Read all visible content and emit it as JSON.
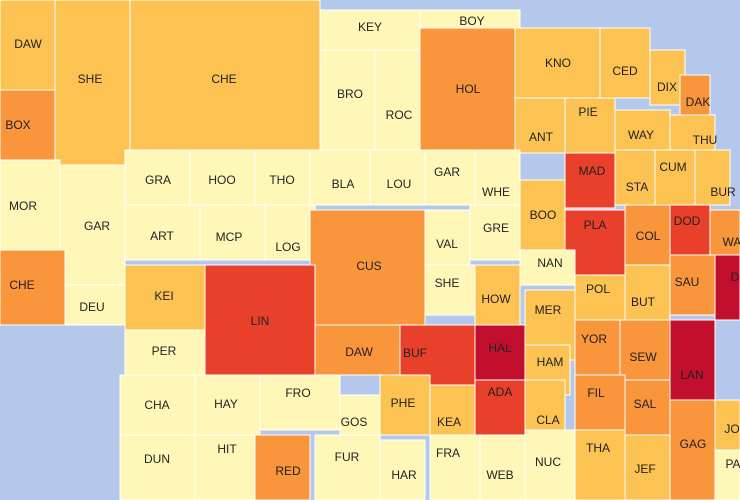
{
  "colors": {
    "water": "#b3c8ea",
    "level1": "#fff7b8",
    "level2": "#fdc352",
    "level3": "#f9953a",
    "level4": "#e8402a",
    "level5": "#c10f2d"
  },
  "counties": [
    {
      "abbr": "DAW",
      "level": 2
    },
    {
      "abbr": "SHE",
      "level": 2
    },
    {
      "abbr": "CHE",
      "level": 2
    },
    {
      "abbr": "KEY",
      "level": 1
    },
    {
      "abbr": "BOY",
      "level": 1
    },
    {
      "abbr": "BRO",
      "level": 1
    },
    {
      "abbr": "ROC",
      "level": 1
    },
    {
      "abbr": "HOL",
      "level": 3
    },
    {
      "abbr": "KNO",
      "level": 2
    },
    {
      "abbr": "CED",
      "level": 2
    },
    {
      "abbr": "DIX",
      "level": 2
    },
    {
      "abbr": "DAK",
      "level": 3
    },
    {
      "abbr": "BOX",
      "level": 3
    },
    {
      "abbr": "ANT",
      "level": 2
    },
    {
      "abbr": "PIE",
      "level": 2
    },
    {
      "abbr": "WAY",
      "level": 2
    },
    {
      "abbr": "THU",
      "level": 2
    },
    {
      "abbr": "GRA",
      "level": 1
    },
    {
      "abbr": "HOO",
      "level": 1
    },
    {
      "abbr": "THO",
      "level": 1
    },
    {
      "abbr": "BLA",
      "level": 1
    },
    {
      "abbr": "LOU",
      "level": 1
    },
    {
      "abbr": "GAR",
      "level": 1
    },
    {
      "abbr": "WHE",
      "level": 1
    },
    {
      "abbr": "MAD",
      "level": 4
    },
    {
      "abbr": "STA",
      "level": 2
    },
    {
      "abbr": "CUM",
      "level": 2
    },
    {
      "abbr": "BUR",
      "level": 2
    },
    {
      "abbr": "MOR",
      "level": 1
    },
    {
      "abbr": "GAR",
      "level": 1
    },
    {
      "abbr": "ART",
      "level": 1
    },
    {
      "abbr": "MCP",
      "level": 1
    },
    {
      "abbr": "LOG",
      "level": 1
    },
    {
      "abbr": "CUS",
      "level": 3
    },
    {
      "abbr": "VAL",
      "level": 1
    },
    {
      "abbr": "GRE",
      "level": 1
    },
    {
      "abbr": "BOO",
      "level": 2
    },
    {
      "abbr": "PLA",
      "level": 4
    },
    {
      "abbr": "COL",
      "level": 3
    },
    {
      "abbr": "DOD",
      "level": 4
    },
    {
      "abbr": "WA",
      "level": 3
    },
    {
      "abbr": "CHE",
      "level": 3
    },
    {
      "abbr": "DEU",
      "level": 1
    },
    {
      "abbr": "KEI",
      "level": 2
    },
    {
      "abbr": "LIN",
      "level": 4
    },
    {
      "abbr": "SHE",
      "level": 1
    },
    {
      "abbr": "NAN",
      "level": 1
    },
    {
      "abbr": "HOW",
      "level": 2
    },
    {
      "abbr": "POL",
      "level": 2
    },
    {
      "abbr": "BUT",
      "level": 2
    },
    {
      "abbr": "SAU",
      "level": 3
    },
    {
      "abbr": "D",
      "level": 5
    },
    {
      "abbr": "PER",
      "level": 1
    },
    {
      "abbr": "DAW",
      "level": 3
    },
    {
      "abbr": "BUF",
      "level": 4
    },
    {
      "abbr": "HAL",
      "level": 5
    },
    {
      "abbr": "MER",
      "level": 2
    },
    {
      "abbr": "HAM",
      "level": 2
    },
    {
      "abbr": "YOR",
      "level": 3
    },
    {
      "abbr": "SEW",
      "level": 3
    },
    {
      "abbr": "LAN",
      "level": 5
    },
    {
      "abbr": "CHA",
      "level": 1
    },
    {
      "abbr": "HAY",
      "level": 1
    },
    {
      "abbr": "FRO",
      "level": 1
    },
    {
      "abbr": "GOS",
      "level": 1
    },
    {
      "abbr": "PHE",
      "level": 2
    },
    {
      "abbr": "KEA",
      "level": 2
    },
    {
      "abbr": "ADA",
      "level": 4
    },
    {
      "abbr": "CLA",
      "level": 2
    },
    {
      "abbr": "FIL",
      "level": 3
    },
    {
      "abbr": "SAL",
      "level": 3
    },
    {
      "abbr": "JO",
      "level": 2
    },
    {
      "abbr": "DUN",
      "level": 1
    },
    {
      "abbr": "HIT",
      "level": 1
    },
    {
      "abbr": "RED",
      "level": 3
    },
    {
      "abbr": "FUR",
      "level": 1
    },
    {
      "abbr": "HAR",
      "level": 1
    },
    {
      "abbr": "FRA",
      "level": 1
    },
    {
      "abbr": "WEB",
      "level": 1
    },
    {
      "abbr": "NUC",
      "level": 1
    },
    {
      "abbr": "THA",
      "level": 2
    },
    {
      "abbr": "JEF",
      "level": 2
    },
    {
      "abbr": "GAG",
      "level": 3
    },
    {
      "abbr": "PA",
      "level": 1
    }
  ]
}
